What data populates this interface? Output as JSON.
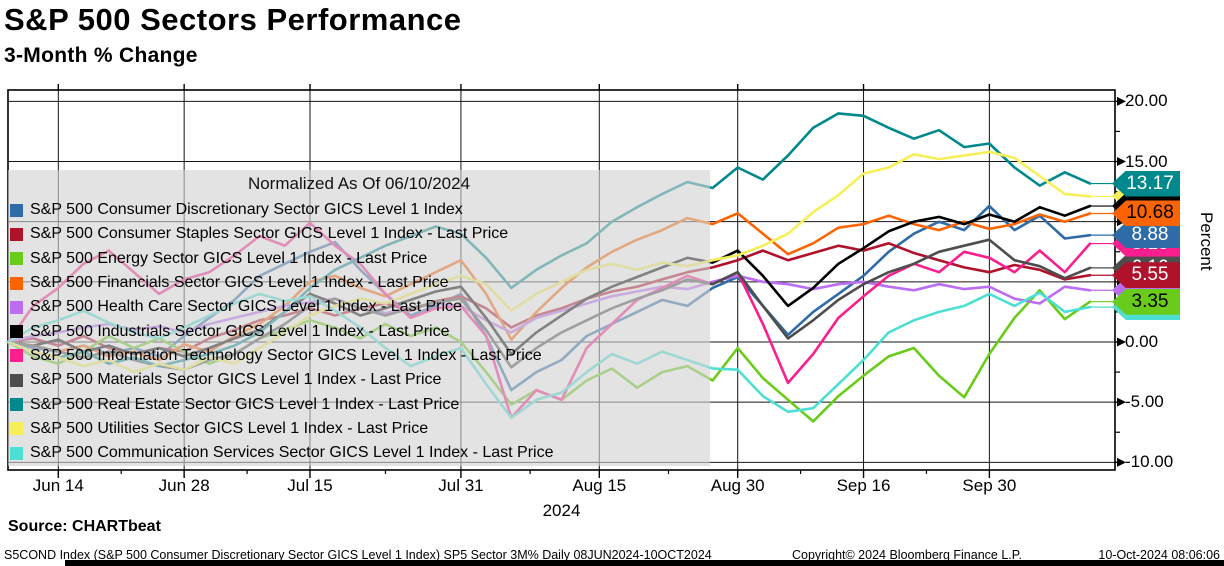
{
  "header": {
    "title": "S&P 500 Sectors Performance",
    "subtitle": "3-Month % Change"
  },
  "legend": {
    "note": "Normalized As Of 06/10/2024"
  },
  "chart_data": {
    "type": "line",
    "title": "S&P 500 Sectors Performance",
    "subtitle": "3-Month % Change",
    "ylabel": "Percent",
    "ylim": [
      -10.6,
      20.9
    ],
    "yticks": [
      20,
      15,
      10,
      5,
      0,
      -5,
      -10
    ],
    "grid": "on",
    "legend_position": "upper-left-overlay",
    "x_axis": {
      "year_label": "2024",
      "range": "08JUN2024-10OCT2024",
      "ticks": [
        {
          "label": "Jun 14",
          "f": 0.0465
        },
        {
          "label": "Jun 28",
          "f": 0.1628
        },
        {
          "label": "Jul 15",
          "f": 0.2791
        },
        {
          "label": "Jul 31",
          "f": 0.4186
        },
        {
          "label": "Aug 15",
          "f": 0.5465
        },
        {
          "label": "Aug 30",
          "f": 0.6744
        },
        {
          "label": "Sep 16",
          "f": 0.7907
        },
        {
          "label": "Sep 30",
          "f": 0.907
        }
      ]
    },
    "series": [
      {
        "name": "S&P 500 Consumer Discretionary Sector GICS Level 1 Index",
        "color": "#2f6ba7",
        "end_label": "8.88",
        "tag_text_color": "#ffffff",
        "values": [
          0,
          -0.5,
          -0.8,
          -0.3,
          -1.0,
          -0.5,
          -1.2,
          0.5,
          2.0,
          3.5,
          5.5,
          6.5,
          7.5,
          8.3,
          6.0,
          4.0,
          2.2,
          3.0,
          4.0,
          0.5,
          -4.0,
          -2.5,
          -1.5,
          0.5,
          1.5,
          2.5,
          3.5,
          3.0,
          4.5,
          5.4,
          3.0,
          0.6,
          2.5,
          4.0,
          5.5,
          7.5,
          9.0,
          10.0,
          9.3,
          11.3,
          9.3,
          10.5,
          8.6,
          8.88
        ]
      },
      {
        "name": "S&P 500 Consumer Staples Sector GICS Level 1 Index - Last Price",
        "color": "#b0122c",
        "end_label": "5.55",
        "tag_text_color": "#ffffff",
        "values": [
          0,
          0.3,
          -0.3,
          0.5,
          -0.5,
          -1.0,
          -0.5,
          -0.8,
          0.3,
          1.0,
          1.8,
          2.2,
          2.8,
          2.2,
          2.8,
          3.2,
          2.6,
          3.4,
          3.8,
          2.8,
          1.2,
          2.2,
          2.8,
          3.6,
          4.2,
          4.6,
          5.2,
          5.8,
          6.2,
          6.8,
          7.6,
          6.8,
          7.4,
          8.0,
          7.6,
          8.2,
          7.4,
          6.8,
          6.2,
          5.8,
          6.4,
          6.0,
          5.2,
          5.55
        ]
      },
      {
        "name": "S&P 500 Energy Sector GICS Level 1 Index - Last Price",
        "color": "#69cb1a",
        "end_label": "3.35",
        "tag_text_color": "#000000",
        "values": [
          0,
          -1.2,
          -1.8,
          -0.8,
          0.5,
          -0.5,
          0.3,
          -0.8,
          -1.8,
          -1.0,
          0.3,
          1.0,
          1.8,
          1.2,
          0.3,
          1.5,
          0.5,
          1.2,
          0.0,
          -2.5,
          -5.2,
          -4.0,
          -4.8,
          -3.2,
          -2.2,
          -3.8,
          -2.5,
          -2.0,
          -3.2,
          -0.5,
          -3.0,
          -4.8,
          -6.6,
          -4.5,
          -2.8,
          -1.2,
          -0.5,
          -2.8,
          -4.6,
          -1.0,
          2.0,
          4.3,
          1.9,
          3.35
        ]
      },
      {
        "name": "S&P 500 Financials Sector GICS Level 1 Index - Last Price",
        "color": "#fb6400",
        "end_label": "10.68",
        "tag_text_color": "#000000",
        "values": [
          0,
          -0.3,
          -0.8,
          -0.3,
          -1.2,
          -0.8,
          -1.5,
          -0.2,
          -0.8,
          0.5,
          1.5,
          3.0,
          5.0,
          5.5,
          4.5,
          3.8,
          4.8,
          5.8,
          6.8,
          4.0,
          0.2,
          2.5,
          4.5,
          6.2,
          7.5,
          8.5,
          9.3,
          10.3,
          9.8,
          10.7,
          9.0,
          7.3,
          8.2,
          9.5,
          9.8,
          10.5,
          9.8,
          9.3,
          10.0,
          9.4,
          9.8,
          10.6,
          10.0,
          10.68
        ]
      },
      {
        "name": "S&P 500 Health Care Sector GICS Level 1 Index - Last Price",
        "color": "#bb6ef2",
        "end_label": "",
        "tag_text_color": "#000000",
        "values": [
          0,
          0.5,
          0.8,
          1.2,
          1.5,
          1.0,
          1.3,
          0.8,
          1.5,
          2.0,
          2.5,
          3.0,
          3.3,
          3.6,
          2.8,
          2.4,
          2.8,
          3.2,
          3.0,
          1.8,
          0.8,
          2.0,
          2.6,
          3.2,
          3.8,
          4.2,
          4.6,
          4.4,
          5.0,
          5.5,
          5.0,
          4.8,
          4.4,
          4.8,
          5.0,
          4.6,
          4.3,
          4.8,
          4.4,
          4.6,
          3.6,
          3.2,
          4.6,
          4.3
        ]
      },
      {
        "name": "S&P 500 Industrials Sector GICS Level 1 Index - Last Price",
        "color": "#000000",
        "end_label": "",
        "tag_text_color": "#ffffff",
        "values": [
          0,
          -0.3,
          0.2,
          -0.8,
          -0.3,
          -1.0,
          -0.5,
          -1.2,
          -0.5,
          0.3,
          1.0,
          2.5,
          4.0,
          3.2,
          2.2,
          2.8,
          3.5,
          4.2,
          4.6,
          2.0,
          -1.0,
          0.8,
          2.2,
          3.6,
          4.6,
          5.4,
          6.2,
          7.0,
          6.6,
          7.6,
          5.5,
          3.0,
          4.5,
          6.5,
          7.8,
          9.2,
          10.0,
          10.4,
          9.8,
          10.6,
          10.0,
          11.2,
          10.5,
          11.3
        ]
      },
      {
        "name": "S&P 500 Information Technology Sector GICS Level 1 Index - Last Price",
        "color": "#fa1e8e",
        "end_label": "8.18",
        "tag_text_color": "#ffffff",
        "values": [
          0,
          3.0,
          4.5,
          6.5,
          7.6,
          5.8,
          4.0,
          5.2,
          5.8,
          7.2,
          8.8,
          8.0,
          9.9,
          8.0,
          6.5,
          4.0,
          2.0,
          2.8,
          3.0,
          0.5,
          -6.3,
          -4.0,
          -4.8,
          -0.5,
          1.5,
          3.5,
          4.5,
          5.5,
          4.8,
          5.8,
          1.5,
          -3.4,
          -1.0,
          2.0,
          3.8,
          5.5,
          6.5,
          5.8,
          7.5,
          7.0,
          5.8,
          7.6,
          5.8,
          8.18
        ]
      },
      {
        "name": "S&P 500 Materials Sector GICS Level 1 Index - Last Price",
        "color": "#4d4d4d",
        "end_label": "6.16",
        "tag_text_color": "#ffffff",
        "values": [
          0,
          -0.3,
          -0.8,
          -1.3,
          -0.8,
          -1.5,
          -2.0,
          -2.3,
          -1.5,
          -1.0,
          0.3,
          1.5,
          3.0,
          3.6,
          2.8,
          2.2,
          2.8,
          3.3,
          3.6,
          1.0,
          -2.1,
          -0.5,
          0.8,
          1.8,
          2.8,
          3.6,
          4.3,
          5.2,
          4.8,
          5.8,
          3.0,
          0.3,
          1.8,
          3.5,
          4.8,
          5.8,
          6.5,
          7.5,
          8.0,
          8.5,
          6.8,
          6.3,
          5.3,
          6.16
        ]
      },
      {
        "name": "S&P 500 Real Estate Sector GICS Level 1 Index - Last Price",
        "color": "#00898c",
        "end_label": "13.17",
        "tag_text_color": "#ffffff",
        "values": [
          0,
          -0.8,
          -1.3,
          -0.8,
          -1.8,
          -1.3,
          -2.0,
          -1.5,
          -1.0,
          -0.3,
          0.8,
          2.5,
          4.5,
          6.0,
          7.0,
          8.0,
          8.8,
          9.6,
          9.0,
          7.0,
          4.5,
          6.0,
          7.2,
          8.2,
          10.0,
          11.2,
          12.3,
          13.3,
          12.8,
          14.5,
          13.5,
          15.5,
          17.8,
          19.0,
          18.8,
          17.8,
          16.9,
          17.6,
          16.2,
          16.5,
          14.5,
          13.0,
          14.1,
          13.17
        ]
      },
      {
        "name": "S&P 500 Utilities Sector GICS Level 1 Index - Last Price",
        "color": "#f7ef58",
        "end_label": "",
        "tag_text_color": "#000000",
        "values": [
          0,
          -0.8,
          -1.3,
          -2.0,
          -1.5,
          -2.5,
          -1.8,
          -2.3,
          -1.3,
          -1.8,
          -0.5,
          0.8,
          2.2,
          3.0,
          3.6,
          3.2,
          4.0,
          4.8,
          5.5,
          4.8,
          2.6,
          4.0,
          5.0,
          6.0,
          6.5,
          6.0,
          6.6,
          6.3,
          6.8,
          7.2,
          8.0,
          9.0,
          10.8,
          12.2,
          14.0,
          14.5,
          15.6,
          15.2,
          15.5,
          15.8,
          15.3,
          13.8,
          12.3,
          12.1
        ]
      },
      {
        "name": "S&P 500 Communication Services Sector GICS Level 1 Index - Last Price",
        "color": "#4ddfd4",
        "end_label": "",
        "tag_text_color": "#000000",
        "values": [
          0,
          1.2,
          1.8,
          2.6,
          1.6,
          0.8,
          0.3,
          1.2,
          2.2,
          3.2,
          4.0,
          3.4,
          3.8,
          2.6,
          1.2,
          -0.5,
          -2.0,
          -1.2,
          -0.5,
          -3.5,
          -6.3,
          -4.8,
          -4.2,
          -2.5,
          -1.0,
          -1.8,
          -0.8,
          -1.5,
          -2.2,
          -2.3,
          -4.5,
          -5.8,
          -5.5,
          -3.5,
          -1.5,
          0.8,
          1.8,
          2.5,
          3.0,
          4.0,
          3.0,
          4.1,
          2.5,
          2.9
        ]
      }
    ]
  },
  "footer": {
    "source": "Source: CHARTbeat",
    "disclaimer": "S5COND Index (S&P 500 Consumer Discretionary Sector GICS Level 1 Index) SP5 Sector 3M%  Daily 08JUN2024-10OCT2024",
    "copyright": "Copyright© 2024 Bloomberg Finance L.P.",
    "datetime": "10-Oct-2024 08:06:06"
  }
}
